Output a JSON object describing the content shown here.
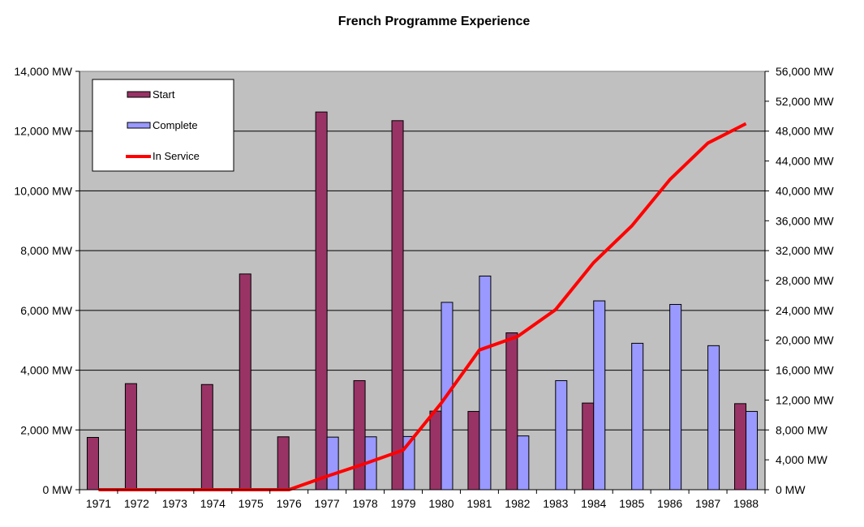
{
  "chart_data": {
    "type": "bar",
    "title": "French Programme Experience",
    "categories": [
      "1971",
      "1972",
      "1973",
      "1974",
      "1975",
      "1976",
      "1977",
      "1978",
      "1979",
      "1980",
      "1981",
      "1982",
      "1983",
      "1984",
      "1985",
      "1986",
      "1987",
      "1988"
    ],
    "series": [
      {
        "name": "Start",
        "type": "bar",
        "axis": "left",
        "color": "#993366",
        "values": [
          1750,
          3550,
          0,
          3520,
          7220,
          1770,
          12640,
          3650,
          12350,
          2630,
          2620,
          5250,
          0,
          2900,
          0,
          0,
          0,
          2880
        ]
      },
      {
        "name": "Complete",
        "type": "bar",
        "axis": "left",
        "color": "#9999ff",
        "values": [
          0,
          0,
          0,
          0,
          0,
          0,
          1760,
          1770,
          1780,
          6270,
          7150,
          1800,
          3650,
          6320,
          4900,
          6200,
          4820,
          2620
        ]
      },
      {
        "name": "In Service",
        "type": "line",
        "axis": "right",
        "color": "#ff0000",
        "values": [
          0,
          0,
          0,
          0,
          0,
          0,
          1800,
          3500,
          5300,
          11600,
          18700,
          20500,
          24100,
          30400,
          35300,
          41500,
          46400,
          49000
        ]
      }
    ],
    "y_left": {
      "min": 0,
      "max": 14000,
      "step": 2000,
      "tick_labels": [
        "0 MW",
        "2,000 MW",
        "4,000 MW",
        "6,000 MW",
        "8,000 MW",
        "10,000 MW",
        "12,000 MW",
        "14,000 MW"
      ]
    },
    "y_right": {
      "min": 0,
      "max": 56000,
      "step": 4000,
      "tick_labels": [
        "0 MW",
        "4,000 MW",
        "8,000 MW",
        "12,000 MW",
        "16,000 MW",
        "20,000 MW",
        "24,000 MW",
        "28,000 MW",
        "32,000 MW",
        "36,000 MW",
        "40,000 MW",
        "44,000 MW",
        "48,000 MW",
        "52,000 MW",
        "56,000 MW"
      ]
    },
    "grid": true,
    "plot_background": "#c0c0c0",
    "legend_position": "top-left"
  }
}
